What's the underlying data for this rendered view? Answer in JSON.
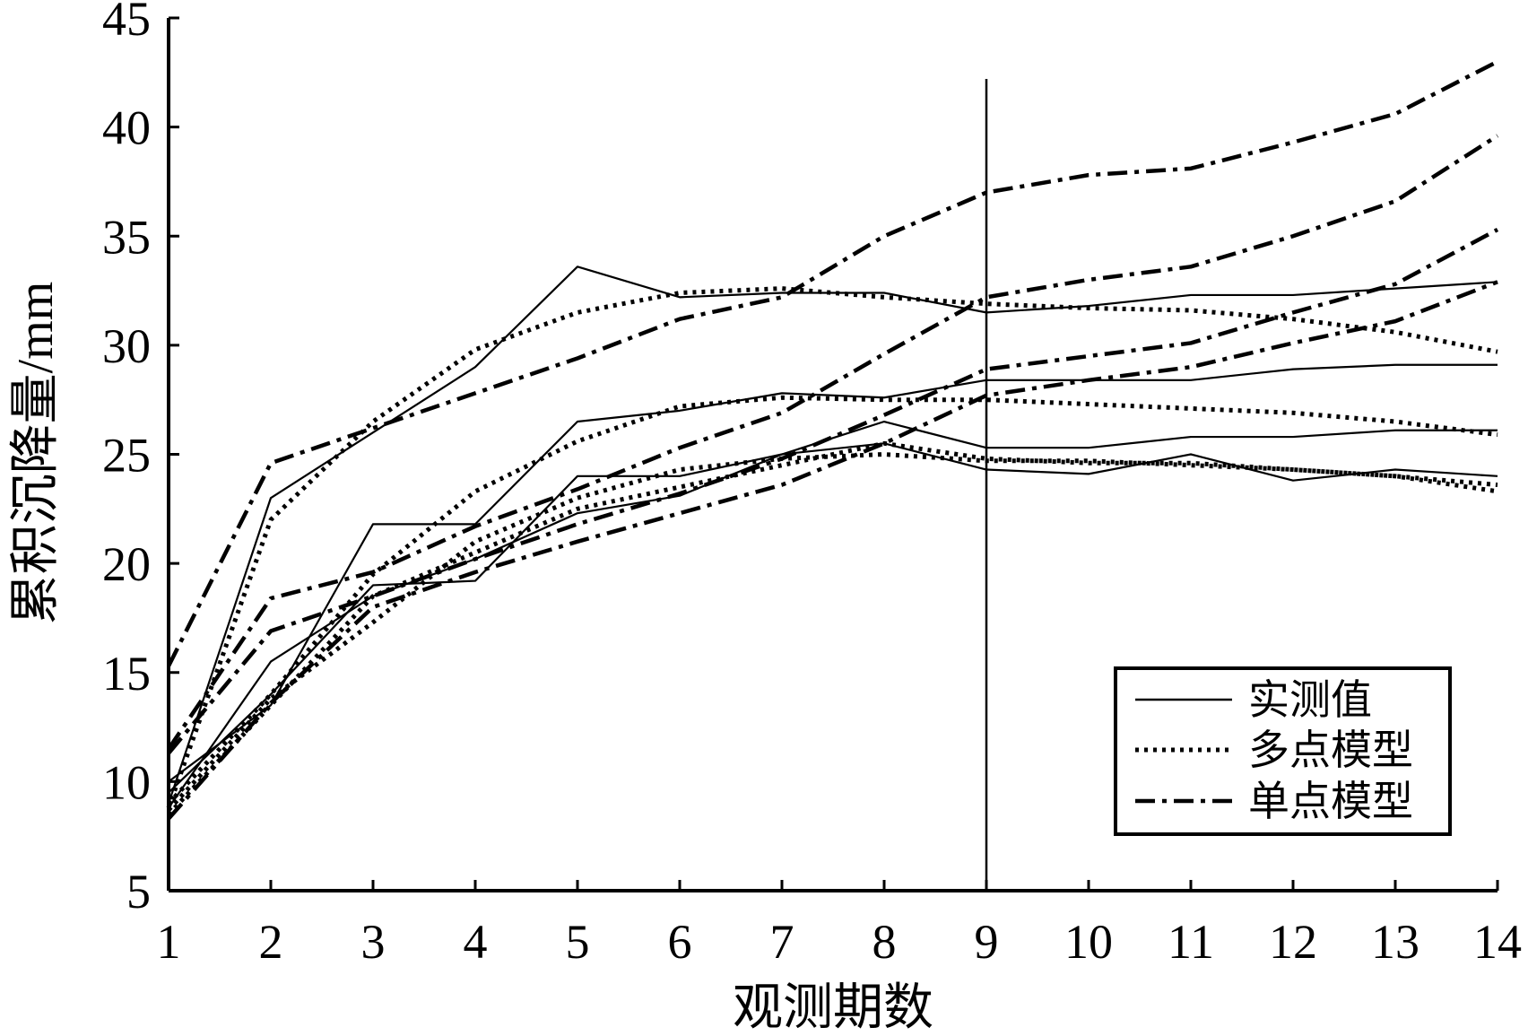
{
  "chart_data": {
    "type": "line",
    "xlabel": "观测期数",
    "ylabel": "累积沉降量/mm",
    "x": [
      1,
      2,
      3,
      4,
      5,
      6,
      7,
      8,
      9,
      10,
      11,
      12,
      13,
      14
    ],
    "xlim": [
      1,
      14
    ],
    "ylim": [
      5,
      45
    ],
    "x_ticks": [
      "1",
      "2",
      "3",
      "4",
      "5",
      "6",
      "7",
      "8",
      "9",
      "10",
      "11",
      "12",
      "13",
      "14"
    ],
    "y_ticks": [
      "5",
      "10",
      "15",
      "20",
      "25",
      "30",
      "35",
      "40",
      "45"
    ],
    "divider_x": 9,
    "grid": false,
    "legend": {
      "position": "bottom-right",
      "entries": [
        {
          "label": "实测值",
          "style": "solid"
        },
        {
          "label": "多点模型",
          "style": "dotted"
        },
        {
          "label": "单点模型",
          "style": "dashdot"
        }
      ]
    },
    "series": [
      {
        "group": "实测值",
        "style": "solid",
        "values": [
          9.0,
          23.0,
          26.0,
          29.0,
          33.6,
          32.2,
          32.4,
          32.4,
          31.5,
          31.8,
          32.3,
          32.3,
          32.6,
          32.9
        ]
      },
      {
        "group": "实测值",
        "style": "solid",
        "values": [
          10.0,
          13.5,
          21.8,
          21.8,
          26.5,
          27.0,
          27.8,
          27.6,
          28.4,
          28.4,
          28.4,
          28.9,
          29.1,
          29.1
        ]
      },
      {
        "group": "实测值",
        "style": "solid",
        "values": [
          9.5,
          14.0,
          19.0,
          19.2,
          24.0,
          24.0,
          25.0,
          26.5,
          25.3,
          25.3,
          25.8,
          25.8,
          26.1,
          26.1
        ]
      },
      {
        "group": "实测值",
        "style": "solid",
        "values": [
          8.8,
          15.5,
          18.5,
          20.2,
          22.3,
          23.1,
          25.0,
          25.5,
          24.3,
          24.1,
          25.0,
          23.8,
          24.3,
          24.0
        ]
      },
      {
        "group": "多点模型",
        "style": "dotted",
        "values": [
          8.8,
          22.0,
          26.5,
          29.8,
          31.5,
          32.4,
          32.6,
          32.2,
          31.9,
          31.7,
          31.6,
          31.2,
          30.6,
          29.7
        ]
      },
      {
        "group": "多点模型",
        "style": "dotted",
        "values": [
          9.0,
          14.0,
          19.5,
          23.3,
          25.6,
          27.2,
          27.6,
          27.5,
          27.5,
          27.3,
          27.1,
          26.9,
          26.5,
          25.9
        ]
      },
      {
        "group": "多点模型",
        "style": "dotted",
        "values": [
          8.7,
          13.8,
          17.3,
          21.0,
          23.0,
          24.3,
          24.8,
          25.0,
          24.7,
          24.7,
          24.5,
          24.3,
          24.0,
          23.6
        ]
      },
      {
        "group": "多点模型",
        "style": "dotted",
        "values": [
          8.5,
          13.5,
          18.5,
          20.5,
          22.5,
          23.5,
          24.5,
          25.5,
          24.8,
          24.6,
          24.6,
          24.3,
          24.0,
          23.3
        ]
      },
      {
        "group": "单点模型",
        "style": "dashdot",
        "values": [
          15.3,
          24.6,
          26.2,
          27.8,
          29.4,
          31.2,
          32.2,
          35.0,
          37.0,
          37.8,
          38.1,
          39.3,
          40.6,
          43.0
        ]
      },
      {
        "group": "单点模型",
        "style": "dashdot",
        "values": [
          11.5,
          18.4,
          19.6,
          21.7,
          23.4,
          25.3,
          26.9,
          29.6,
          32.2,
          33.0,
          33.6,
          35.0,
          36.6,
          39.6
        ]
      },
      {
        "group": "单点模型",
        "style": "dashdot",
        "values": [
          11.3,
          16.9,
          18.5,
          20.2,
          21.8,
          23.2,
          24.8,
          26.8,
          28.9,
          29.5,
          30.1,
          31.5,
          32.8,
          35.3
        ]
      },
      {
        "group": "单点模型",
        "style": "dashdot",
        "values": [
          8.3,
          13.6,
          18.0,
          19.6,
          21.0,
          22.3,
          23.6,
          25.5,
          27.7,
          28.4,
          29.0,
          30.1,
          31.1,
          32.9
        ]
      }
    ]
  }
}
